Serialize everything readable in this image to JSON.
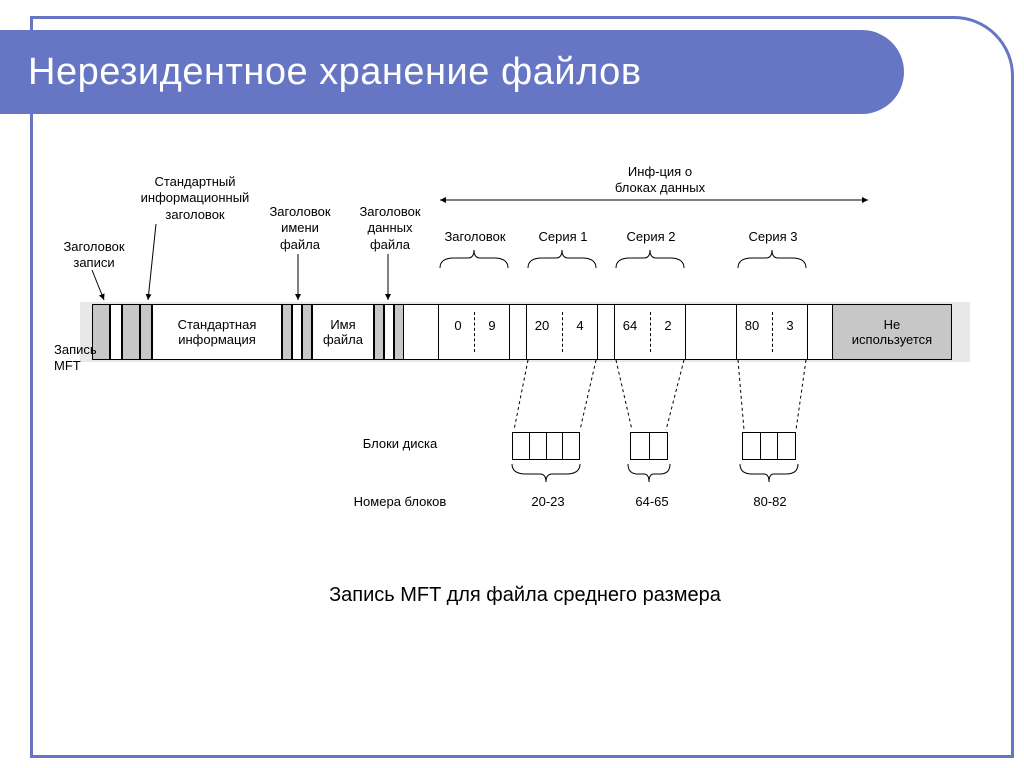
{
  "slide": {
    "title": "Нерезидентное хранение файлов",
    "accent_color": "#6676c5",
    "background_color": "#ffffff",
    "title_fontsize": 38
  },
  "caption": "Запись MFT для файла среднего размера",
  "top_labels": {
    "record_header": "Заголовок\nзаписи",
    "std_info_header": "Стандартный\nинформационный\nзаголовок",
    "filename_header": "Заголовок\nимени\nфайла",
    "data_header": "Заголовок\nданных\nфайла",
    "header": "Заголовок",
    "series1": "Серия 1",
    "series2": "Серия 2",
    "series3": "Серия 3",
    "blocks_info": "Инф-ция о\nблоках данных"
  },
  "left_labels": {
    "mft_record": "Запись\nMFT"
  },
  "strip": {
    "std_info": "Стандартная\nинформация",
    "filename": "Имя\nфайла",
    "unused": "Не\nиспользуется",
    "runs": [
      {
        "start": 0,
        "len": 9
      },
      {
        "start": 20,
        "len": 4
      },
      {
        "start": 64,
        "len": 2
      },
      {
        "start": 80,
        "len": 3
      }
    ]
  },
  "bottom": {
    "disk_blocks_label": "Блоки диска",
    "block_numbers_label": "Номера блоков",
    "groups": [
      {
        "cells": 4,
        "range": "20-23"
      },
      {
        "cells": 2,
        "range": "64-65"
      },
      {
        "cells": 3,
        "range": "80-82"
      }
    ]
  },
  "styling": {
    "strip_height": 56,
    "gray_fill": "#c7c7c7",
    "lightgray_fill": "#e8e8e8",
    "border_color": "#000000",
    "label_fontsize": 13,
    "caption_fontsize": 20
  }
}
